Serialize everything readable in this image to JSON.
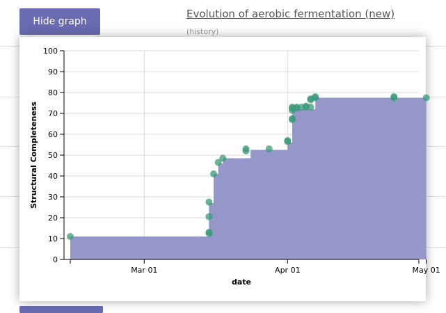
{
  "header": {
    "hide_graph_label": "Hide graph",
    "title": "Evolution of aerobic fermentation (new)",
    "history_label": "(history)"
  },
  "colors": {
    "button": "#6a6bb0",
    "area_fill": "#9597c8",
    "point": "#3a9a78"
  },
  "chart_data": {
    "type": "area",
    "step": true,
    "xlabel": "date",
    "ylabel": "Structural Completeness",
    "ylim": [
      0,
      100
    ],
    "yticks": [
      0,
      10,
      20,
      30,
      40,
      50,
      60,
      70,
      80,
      90,
      100
    ],
    "xlim": [
      "2017-02-12",
      "2017-05-01"
    ],
    "xticks": [
      {
        "date": "2017-03-01",
        "label": "Mar 01"
      },
      {
        "date": "2017-04-01",
        "label": "Apr 01"
      },
      {
        "date": "2017-05-01",
        "label": "May 01"
      }
    ],
    "grid": true,
    "steps": [
      {
        "x": "2017-02-13",
        "y": 11
      },
      {
        "x": "2017-03-15",
        "y": 27
      },
      {
        "x": "2017-03-16",
        "y": 41
      },
      {
        "x": "2017-03-17",
        "y": 46
      },
      {
        "x": "2017-03-18",
        "y": 48.5
      },
      {
        "x": "2017-03-24",
        "y": 52.5
      },
      {
        "x": "2017-04-01",
        "y": 56
      },
      {
        "x": "2017-04-02",
        "y": 72
      },
      {
        "x": "2017-04-07",
        "y": 77.5
      },
      {
        "x": "2017-05-01",
        "y": 77.5
      }
    ],
    "points": [
      {
        "x": "2017-02-13",
        "y": 11
      },
      {
        "x": "2017-03-15",
        "y": 12.5
      },
      {
        "x": "2017-03-15",
        "y": 13
      },
      {
        "x": "2017-03-15",
        "y": 20.5
      },
      {
        "x": "2017-03-15",
        "y": 27.5
      },
      {
        "x": "2017-03-16",
        "y": 41
      },
      {
        "x": "2017-03-17",
        "y": 46.5
      },
      {
        "x": "2017-03-18",
        "y": 48.5
      },
      {
        "x": "2017-03-23",
        "y": 52
      },
      {
        "x": "2017-03-23",
        "y": 53
      },
      {
        "x": "2017-03-28",
        "y": 53
      },
      {
        "x": "2017-04-01",
        "y": 56.5
      },
      {
        "x": "2017-04-01",
        "y": 57
      },
      {
        "x": "2017-04-02",
        "y": 67
      },
      {
        "x": "2017-04-02",
        "y": 67.5
      },
      {
        "x": "2017-04-02",
        "y": 71.5
      },
      {
        "x": "2017-04-02",
        "y": 72.5
      },
      {
        "x": "2017-04-02",
        "y": 73
      },
      {
        "x": "2017-04-03",
        "y": 73
      },
      {
        "x": "2017-04-03",
        "y": 72.5
      },
      {
        "x": "2017-04-04",
        "y": 73
      },
      {
        "x": "2017-04-05",
        "y": 73.5
      },
      {
        "x": "2017-04-05",
        "y": 73
      },
      {
        "x": "2017-04-06",
        "y": 73
      },
      {
        "x": "2017-04-06",
        "y": 76.5
      },
      {
        "x": "2017-04-06",
        "y": 77
      },
      {
        "x": "2017-04-07",
        "y": 77.5
      },
      {
        "x": "2017-04-07",
        "y": 78
      },
      {
        "x": "2017-04-24",
        "y": 77.5
      },
      {
        "x": "2017-04-24",
        "y": 78
      },
      {
        "x": "2017-05-01",
        "y": 77.5
      }
    ]
  }
}
